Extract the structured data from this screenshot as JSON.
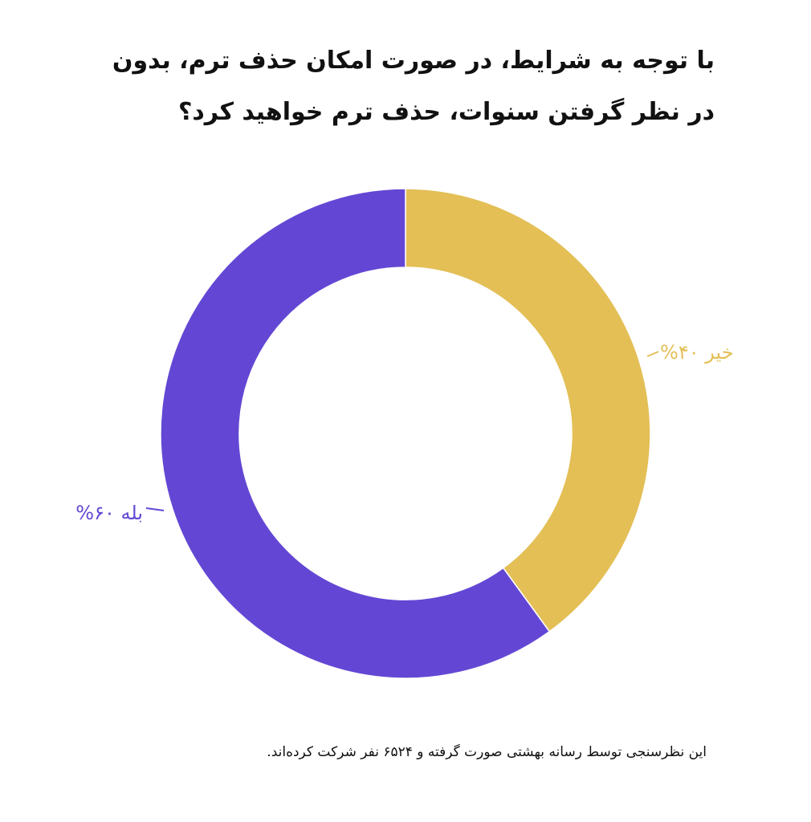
{
  "chart_data": {
    "type": "pie",
    "title_lines": [
      "با توجه به شرایط، در صورت امکان حذف ترم، بدون",
      "در نظر گرفتن سنوات، حذف ترم خواهید کرد؟"
    ],
    "slices": [
      {
        "label": "خیر",
        "value": 40,
        "display": "خیر ۴۰%",
        "color": "#E3BF56"
      },
      {
        "label": "بله",
        "value": 60,
        "display": "بله ۶۰%",
        "color": "#6347D4"
      }
    ],
    "donut": true,
    "start_angle": "top",
    "direction": "clockwise"
  },
  "footnote": "این نظرسنجی توسط رسانه بهشتی صورت گرفته و ۶۵۲۴ نفر شرکت کرده‌اند."
}
